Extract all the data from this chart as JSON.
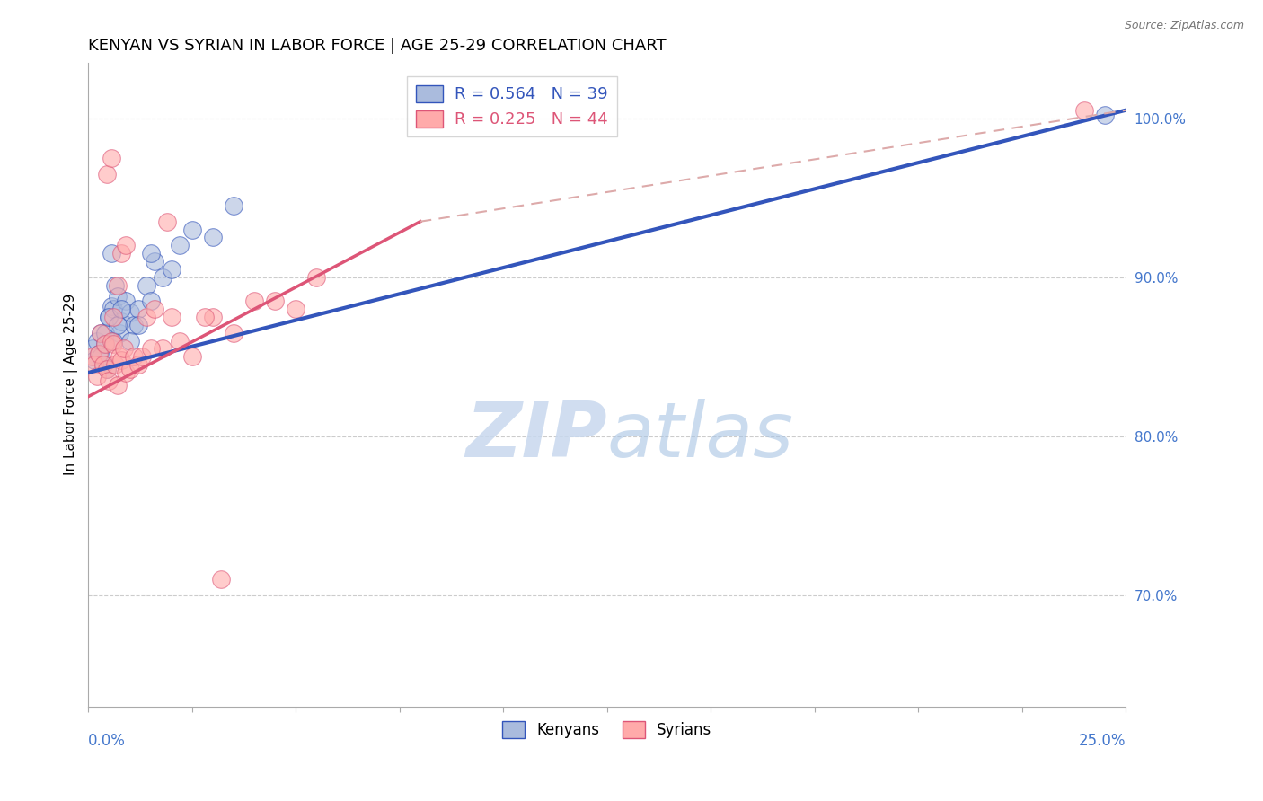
{
  "title": "KENYAN VS SYRIAN IN LABOR FORCE | AGE 25-29 CORRELATION CHART",
  "source": "Source: ZipAtlas.com",
  "ylabel": "In Labor Force | Age 25-29",
  "right_yticks": [
    70.0,
    80.0,
    90.0,
    100.0
  ],
  "xmin": 0.0,
  "xmax": 25.0,
  "ymin": 63.0,
  "ymax": 103.5,
  "legend_blue_r": "R = 0.564",
  "legend_blue_n": "N = 39",
  "legend_pink_r": "R = 0.225",
  "legend_pink_n": "N = 44",
  "blue_color": "#AABBDD",
  "pink_color": "#FFAAAA",
  "trend_blue_color": "#3355BB",
  "trend_pink_color": "#DD5577",
  "dashed_color": "#DDAAAA",
  "watermark_zip": "ZIP",
  "watermark_atlas": "atlas",
  "blue_line_x0": 0.0,
  "blue_line_y0": 84.0,
  "blue_line_x1": 25.0,
  "blue_line_y1": 100.5,
  "pink_solid_x0": 0.0,
  "pink_solid_y0": 82.5,
  "pink_solid_x1": 8.0,
  "pink_solid_y1": 93.5,
  "pink_dash_x0": 8.0,
  "pink_dash_y0": 93.5,
  "pink_dash_x1": 25.0,
  "pink_dash_y1": 100.5,
  "blue_x": [
    0.1,
    0.15,
    0.2,
    0.25,
    0.3,
    0.35,
    0.4,
    0.45,
    0.5,
    0.55,
    0.6,
    0.65,
    0.7,
    0.75,
    0.8,
    0.9,
    1.0,
    1.1,
    1.2,
    1.4,
    1.6,
    1.8,
    2.0,
    2.5,
    3.0,
    3.5,
    1.5,
    0.3,
    0.4,
    0.5,
    0.6,
    0.7,
    0.8,
    1.0,
    1.2,
    1.5,
    2.2,
    0.55,
    24.5
  ],
  "blue_y": [
    85.5,
    84.8,
    86.0,
    85.2,
    86.5,
    84.5,
    85.8,
    84.2,
    87.5,
    88.2,
    88.0,
    89.5,
    88.8,
    86.5,
    87.2,
    88.5,
    87.8,
    87.0,
    88.0,
    89.5,
    91.0,
    90.0,
    90.5,
    93.0,
    92.5,
    94.5,
    91.5,
    85.0,
    86.5,
    87.5,
    86.0,
    87.0,
    88.0,
    86.0,
    87.0,
    88.5,
    92.0,
    91.5,
    100.2
  ],
  "pink_x": [
    0.1,
    0.15,
    0.2,
    0.25,
    0.3,
    0.35,
    0.4,
    0.45,
    0.5,
    0.55,
    0.6,
    0.65,
    0.7,
    0.75,
    0.8,
    0.85,
    0.9,
    1.0,
    1.1,
    1.2,
    1.4,
    1.6,
    1.8,
    2.0,
    2.5,
    3.0,
    4.5,
    5.5,
    0.6,
    0.7,
    0.8,
    0.9,
    1.3,
    1.5,
    2.2,
    2.8,
    4.0,
    5.0,
    3.5,
    1.9,
    0.45,
    0.55,
    3.2,
    24.0
  ],
  "pink_y": [
    85.0,
    84.5,
    83.8,
    85.2,
    86.5,
    84.5,
    85.8,
    84.2,
    83.5,
    86.0,
    85.8,
    84.5,
    83.2,
    85.0,
    84.8,
    85.5,
    84.0,
    84.2,
    85.0,
    84.5,
    87.5,
    88.0,
    85.5,
    87.5,
    85.0,
    87.5,
    88.5,
    90.0,
    87.5,
    89.5,
    91.5,
    92.0,
    85.0,
    85.5,
    86.0,
    87.5,
    88.5,
    88.0,
    86.5,
    93.5,
    96.5,
    97.5,
    71.0,
    100.5
  ]
}
